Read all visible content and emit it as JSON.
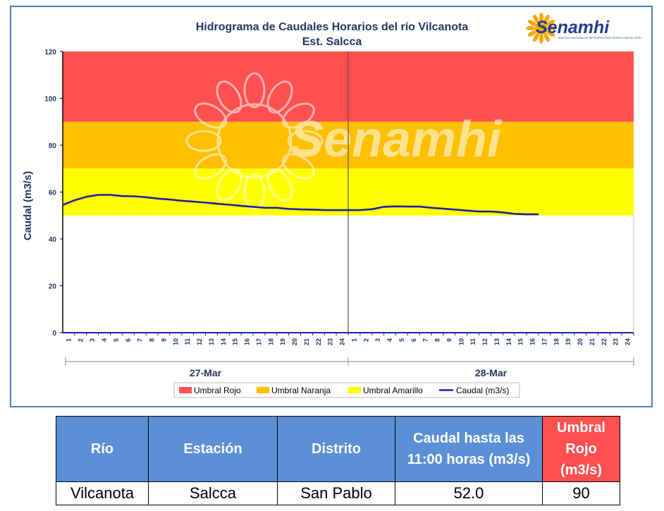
{
  "chart_data": {
    "type": "line",
    "title": "Hidrograma de Caudales Horarios del río Vilcanota",
    "subtitle": "Est. Salcca",
    "ylabel": "Caudal (m3/s)",
    "ylim": [
      0,
      120
    ],
    "yticks": [
      0,
      20,
      40,
      60,
      80,
      100,
      120
    ],
    "hour_ticks": [
      "1",
      "2",
      "3",
      "4",
      "5",
      "6",
      "7",
      "8",
      "9",
      "10",
      "11",
      "12",
      "13",
      "14",
      "15",
      "16",
      "17",
      "18",
      "19",
      "20",
      "21",
      "22",
      "23",
      "24"
    ],
    "days": [
      "27-Mar",
      "28-Mar"
    ],
    "thresholds": [
      {
        "name": "Umbral Rojo",
        "from": 90,
        "to": 120,
        "color": "#ff5050"
      },
      {
        "name": "Umbral Naranja",
        "from": 70,
        "to": 90,
        "color": "#ffc000"
      },
      {
        "name": "Umbral Amarillo",
        "from": 50,
        "to": 70,
        "color": "#ffff00"
      }
    ],
    "series": [
      {
        "name": "Caudal (m3/s)",
        "color": "#1f1fa8",
        "values": [
          54.5,
          56.5,
          58.0,
          58.8,
          58.8,
          58.3,
          58.2,
          57.8,
          57.2,
          56.8,
          56.3,
          55.9,
          55.5,
          55.0,
          54.6,
          54.1,
          53.7,
          53.3,
          53.3,
          52.8,
          52.6,
          52.5,
          52.3,
          52.3,
          52.3,
          52.3,
          52.7,
          53.7,
          53.9,
          53.8,
          53.8,
          53.3,
          52.9,
          52.5,
          52.1,
          51.7,
          51.7,
          51.3,
          50.7,
          50.5,
          50.5
        ]
      }
    ],
    "watermark": "Senamhi",
    "legend_position": "bottom"
  },
  "logo": {
    "text": "Senamhi",
    "subtext": "SERVICIO NACIONAL DE METEOROLOGÍA E HIDROLOGÍA DEL PERÚ"
  },
  "table": {
    "headers": [
      "Río",
      "Estación",
      "Distrito",
      "Caudal hasta las 11:00 horas (m3/s)",
      "Umbral Rojo (m3/s)"
    ],
    "row": [
      "Vilcanota",
      "Salcca",
      "San Pablo",
      "52.0",
      "90"
    ]
  }
}
